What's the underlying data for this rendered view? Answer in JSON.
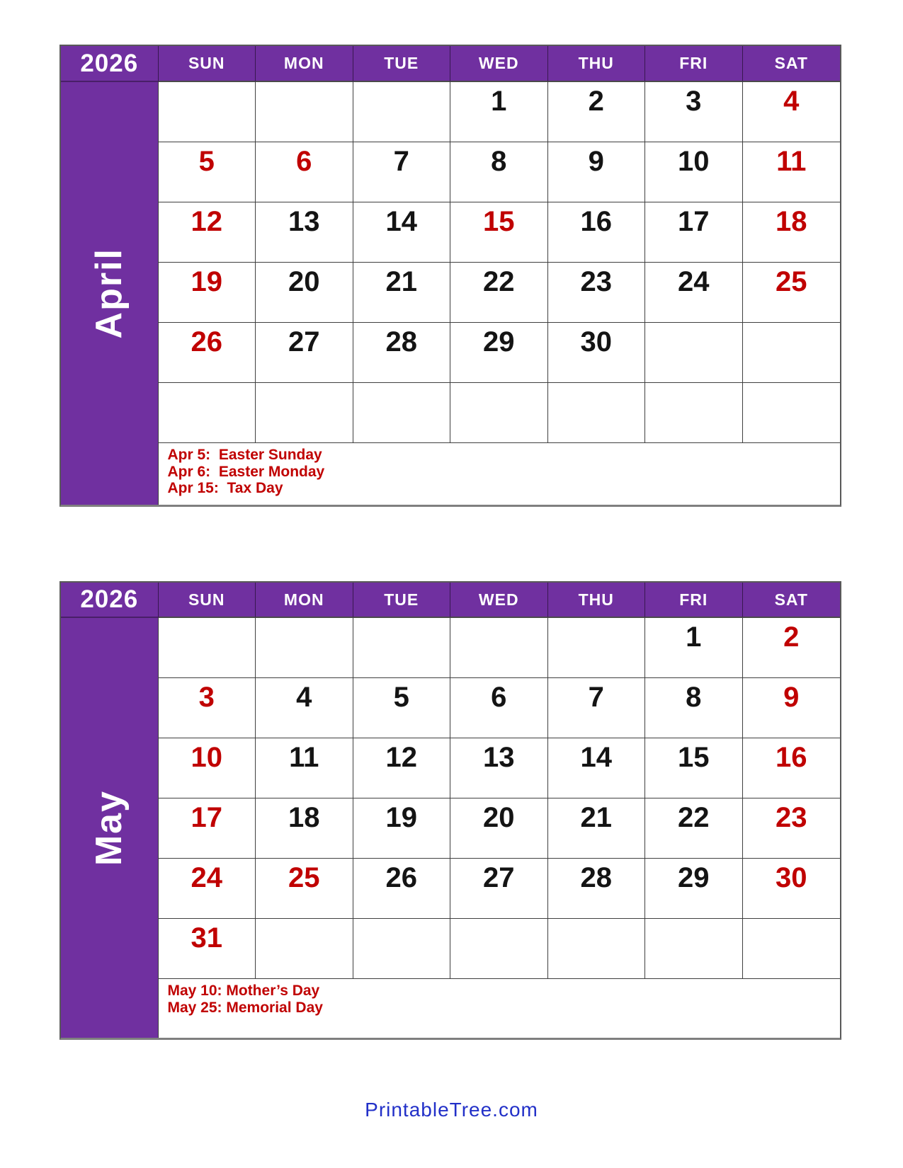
{
  "colors": {
    "purple": "#7030A0",
    "red": "#C00000",
    "link_blue": "#2230C8"
  },
  "footer": {
    "link_label": "PrintableTree.com"
  },
  "calendars": [
    {
      "id": "april-2026",
      "year": "2026",
      "month_label": "April",
      "day_headers": [
        "SUN",
        "MON",
        "TUE",
        "WED",
        "THU",
        "FRI",
        "SAT"
      ],
      "weeks": [
        [
          "",
          "",
          "",
          "1",
          "2",
          "3",
          "4"
        ],
        [
          "5",
          "6",
          "7",
          "8",
          "9",
          "10",
          "11"
        ],
        [
          "12",
          "13",
          "14",
          "15",
          "16",
          "17",
          "18"
        ],
        [
          "19",
          "20",
          "21",
          "22",
          "23",
          "24",
          "25"
        ],
        [
          "26",
          "27",
          "28",
          "29",
          "30",
          "",
          ""
        ],
        [
          "",
          "",
          "",
          "",
          "",
          "",
          ""
        ]
      ],
      "red_days": [
        4,
        5,
        6,
        11,
        12,
        15,
        18,
        19,
        25,
        26
      ],
      "holidays": [
        "Apr 5:  Easter Sunday",
        "Apr 6:  Easter Monday",
        "Apr 15:  Tax Day"
      ]
    },
    {
      "id": "may-2026",
      "year": "2026",
      "month_label": "May",
      "day_headers": [
        "SUN",
        "MON",
        "TUE",
        "WED",
        "THU",
        "FRI",
        "SAT"
      ],
      "weeks": [
        [
          "",
          "",
          "",
          "",
          "",
          "1",
          "2"
        ],
        [
          "3",
          "4",
          "5",
          "6",
          "7",
          "8",
          "9"
        ],
        [
          "10",
          "11",
          "12",
          "13",
          "14",
          "15",
          "16"
        ],
        [
          "17",
          "18",
          "19",
          "20",
          "21",
          "22",
          "23"
        ],
        [
          "24",
          "25",
          "26",
          "27",
          "28",
          "29",
          "30"
        ],
        [
          "31",
          "",
          "",
          "",
          "",
          "",
          ""
        ]
      ],
      "red_days": [
        2,
        3,
        9,
        10,
        16,
        17,
        23,
        24,
        25,
        30,
        31
      ],
      "holidays": [
        "May 10: Mother’s Day",
        "May 25: Memorial Day"
      ]
    }
  ]
}
